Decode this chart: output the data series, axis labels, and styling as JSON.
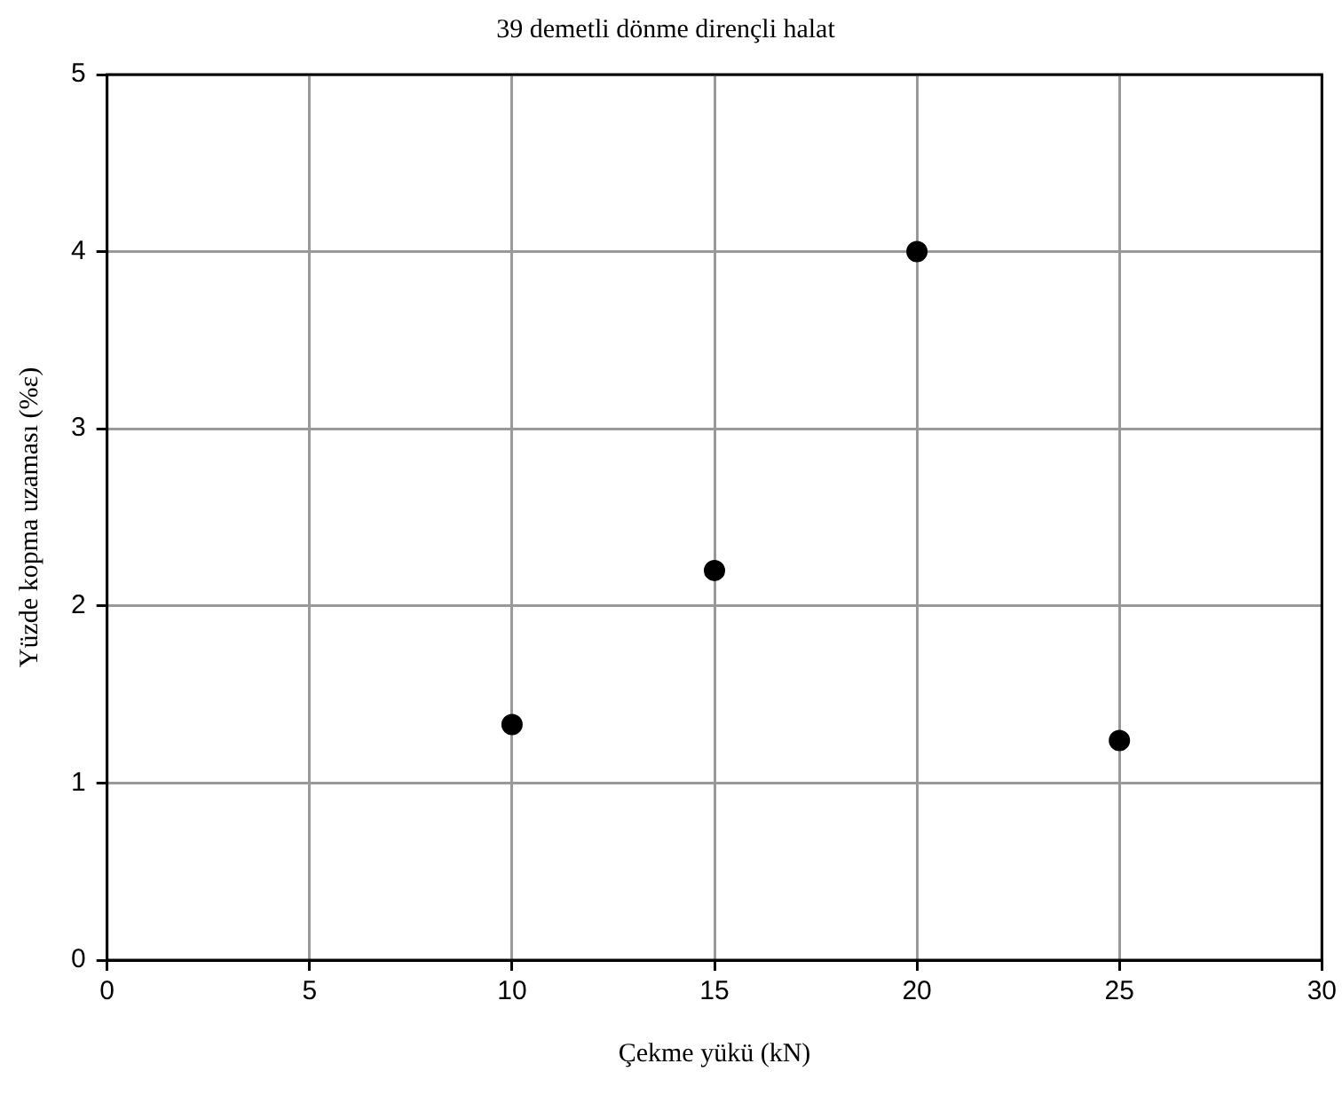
{
  "chart_data": {
    "type": "scatter",
    "title": "39 demetli dönme dirençli halat",
    "xlabel": "Çekme yükü (kN)",
    "ylabel": "Yüzde kopma uzaması (%ε)",
    "x": [
      10,
      15,
      20,
      25
    ],
    "series": [
      {
        "color": "#000000",
        "values": [
          1.33,
          2.2,
          4.0,
          1.24
        ]
      }
    ],
    "xlim": [
      0,
      30
    ],
    "xticks": [
      0,
      5,
      10,
      15,
      20,
      25,
      30
    ],
    "ylim": [
      0,
      5
    ],
    "yticks": [
      0,
      1,
      2,
      3,
      4,
      5
    ],
    "grid": true,
    "legend": false,
    "marker": "circle"
  }
}
